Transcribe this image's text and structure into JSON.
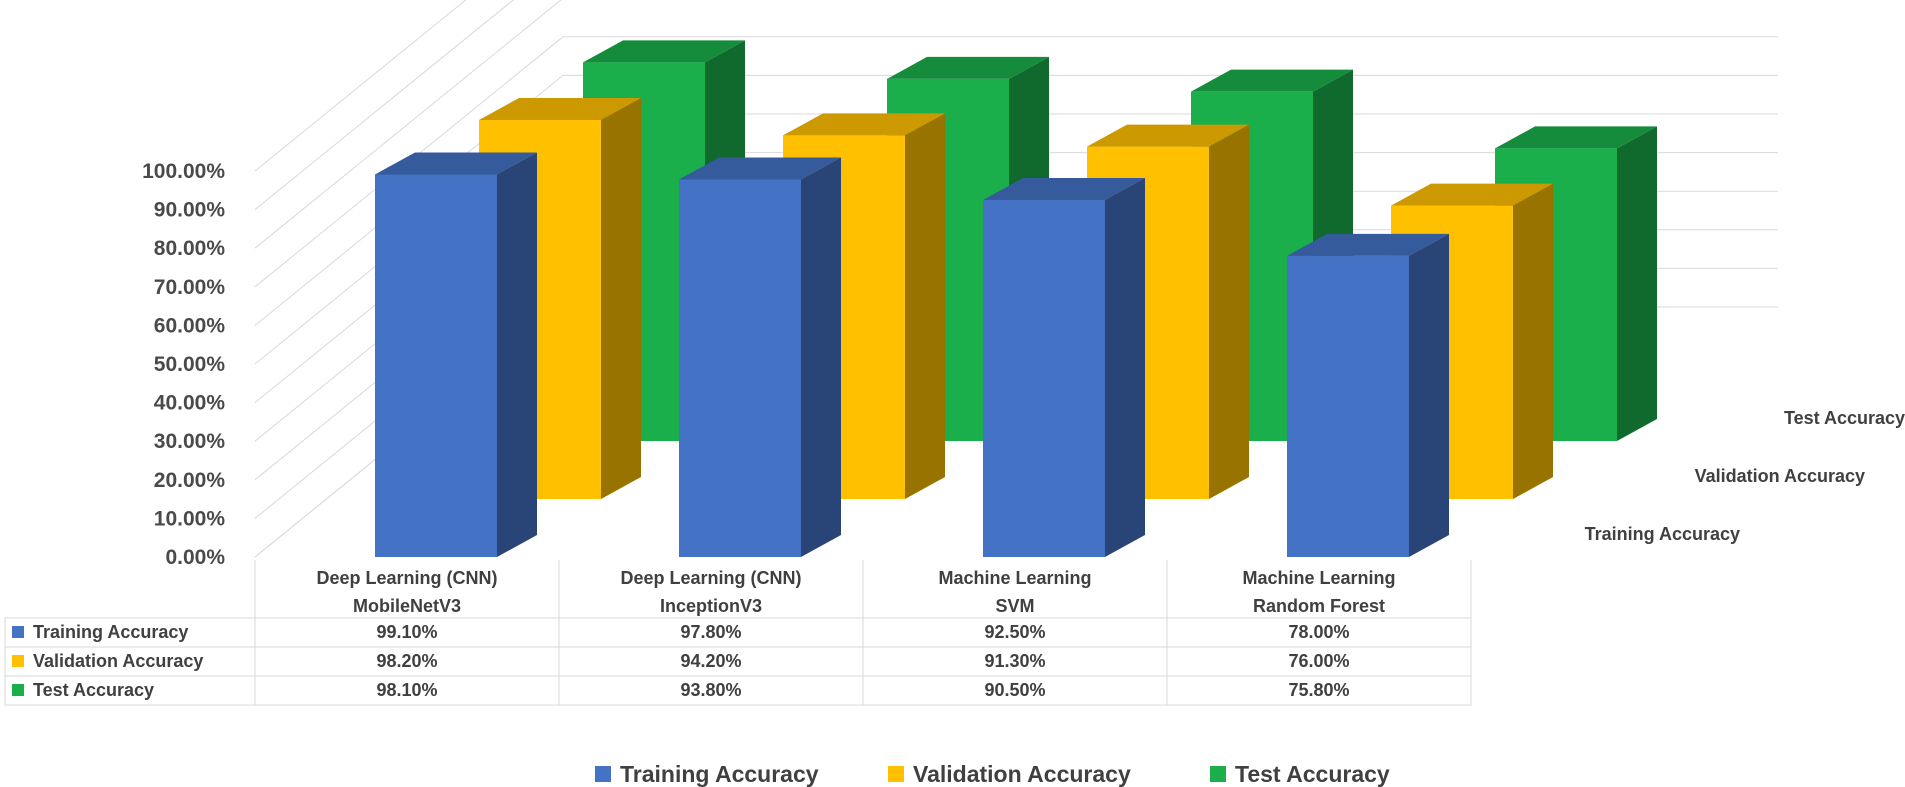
{
  "chart_data": {
    "type": "bar",
    "subtype": "3d-clustered-with-data-table",
    "categories": [
      [
        "Deep Learning (CNN)",
        "MobileNetV3"
      ],
      [
        "Deep Learning (CNN)",
        "InceptionV3"
      ],
      [
        "Machine Learning",
        "SVM"
      ],
      [
        "Machine Learning",
        "Random Forest"
      ]
    ],
    "series": [
      {
        "name": "Training Accuracy",
        "color": "#4472C4",
        "values": [
          99.1,
          97.8,
          92.5,
          78.0
        ],
        "labels": [
          "99.10%",
          "97.80%",
          "92.50%",
          "78.00%"
        ]
      },
      {
        "name": "Validation Accuracy",
        "color": "#FFC000",
        "values": [
          98.2,
          94.2,
          91.3,
          76.0
        ],
        "labels": [
          "98.20%",
          "94.20%",
          "91.30%",
          "76.00%"
        ]
      },
      {
        "name": "Test Accuracy",
        "color": "#1AAF4B",
        "values": [
          98.1,
          93.8,
          90.5,
          75.8
        ],
        "labels": [
          "98.10%",
          "93.80%",
          "90.50%",
          "75.80%"
        ]
      }
    ],
    "yticks": [
      "0.00%",
      "10.00%",
      "20.00%",
      "30.00%",
      "40.00%",
      "50.00%",
      "60.00%",
      "70.00%",
      "80.00%",
      "90.00%",
      "100.00%"
    ],
    "ylim": [
      0,
      100
    ],
    "depth_labels": [
      "Training Accuracy",
      "Validation Accuracy",
      "Test Accuracy"
    ],
    "legend": [
      "Training Accuracy",
      "Validation Accuracy",
      "Test Accuracy"
    ],
    "legend_position": "bottom",
    "grid": true
  }
}
